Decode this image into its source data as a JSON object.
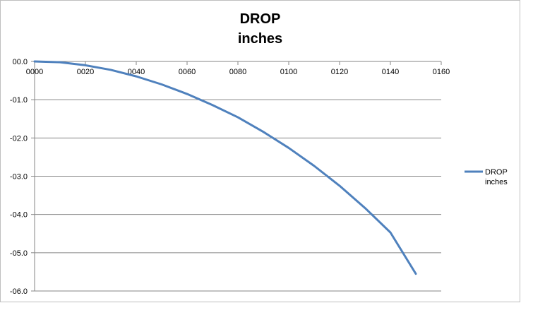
{
  "chart_data": {
    "type": "line",
    "title": "DROP",
    "subtitle": "inches",
    "xlabel": "",
    "ylabel": "",
    "x_ticks": [
      "0000",
      "0020",
      "0040",
      "0060",
      "0080",
      "0100",
      "0120",
      "0140",
      "0160"
    ],
    "y_ticks": [
      "00.0",
      "-01.0",
      "-02.0",
      "-03.0",
      "-04.0",
      "-05.0",
      "-06.0"
    ],
    "xlim": [
      0,
      160
    ],
    "ylim": [
      -6,
      0
    ],
    "grid": "horizontal",
    "legend_placement": "right",
    "series": [
      {
        "name": "DROP inches",
        "color": "#4f81bd",
        "x": [
          0,
          10,
          20,
          30,
          40,
          50,
          60,
          70,
          80,
          90,
          100,
          110,
          120,
          130,
          140,
          150
        ],
        "y": [
          0.0,
          -0.02,
          -0.1,
          -0.22,
          -0.39,
          -0.6,
          -0.85,
          -1.14,
          -1.46,
          -1.84,
          -2.26,
          -2.73,
          -3.25,
          -3.83,
          -4.47,
          -5.55
        ]
      }
    ]
  }
}
